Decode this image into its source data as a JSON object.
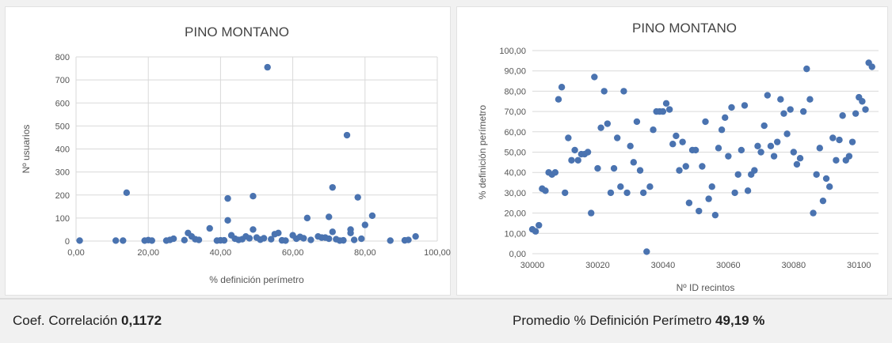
{
  "chart_data": [
    {
      "type": "scatter",
      "title": "PINO MONTANO",
      "xlabel": "% definición perímetro",
      "ylabel": "Nº usuarios",
      "xlim": [
        0,
        100
      ],
      "ylim": [
        0,
        800
      ],
      "x_ticks": [
        "0,00",
        "20,00",
        "40,00",
        "60,00",
        "80,00",
        "100,00"
      ],
      "y_ticks": [
        "0",
        "100",
        "200",
        "300",
        "400",
        "500",
        "600",
        "700",
        "800"
      ],
      "grid": true,
      "color": "#4a73b0",
      "points": [
        [
          1,
          2
        ],
        [
          11,
          2
        ],
        [
          13,
          2
        ],
        [
          14,
          210
        ],
        [
          19,
          2
        ],
        [
          20,
          4
        ],
        [
          21,
          2
        ],
        [
          25,
          2
        ],
        [
          26,
          5
        ],
        [
          27,
          10
        ],
        [
          30,
          4
        ],
        [
          31,
          35
        ],
        [
          32,
          20
        ],
        [
          33,
          8
        ],
        [
          34,
          5
        ],
        [
          37,
          55
        ],
        [
          39,
          2
        ],
        [
          40,
          3
        ],
        [
          41,
          3
        ],
        [
          42,
          185
        ],
        [
          42,
          90
        ],
        [
          43,
          25
        ],
        [
          44,
          10
        ],
        [
          45,
          5
        ],
        [
          46,
          8
        ],
        [
          47,
          20
        ],
        [
          48,
          12
        ],
        [
          49,
          195
        ],
        [
          49,
          50
        ],
        [
          50,
          15
        ],
        [
          51,
          6
        ],
        [
          52,
          12
        ],
        [
          53,
          755
        ],
        [
          54,
          8
        ],
        [
          55,
          30
        ],
        [
          56,
          35
        ],
        [
          57,
          3
        ],
        [
          58,
          2
        ],
        [
          60,
          25
        ],
        [
          61,
          10
        ],
        [
          62,
          18
        ],
        [
          63,
          12
        ],
        [
          64,
          100
        ],
        [
          65,
          5
        ],
        [
          67,
          20
        ],
        [
          68,
          15
        ],
        [
          69,
          15
        ],
        [
          70,
          105
        ],
        [
          70,
          10
        ],
        [
          71,
          233
        ],
        [
          71,
          40
        ],
        [
          72,
          8
        ],
        [
          73,
          2
        ],
        [
          74,
          3
        ],
        [
          75,
          460
        ],
        [
          76,
          50
        ],
        [
          76,
          35
        ],
        [
          77,
          5
        ],
        [
          78,
          190
        ],
        [
          79,
          10
        ],
        [
          80,
          70
        ],
        [
          82,
          110
        ],
        [
          87,
          2
        ],
        [
          91,
          3
        ],
        [
          92,
          5
        ],
        [
          94,
          20
        ]
      ]
    },
    {
      "type": "scatter",
      "title": "PINO MONTANO",
      "xlabel": "Nº  ID recintos",
      "ylabel": "% definición perímetro",
      "xlim": [
        30000,
        30106
      ],
      "ylim": [
        0,
        100
      ],
      "x_ticks": [
        "30000",
        "30020",
        "30040",
        "30060",
        "30080",
        "30100"
      ],
      "y_ticks": [
        "0,00",
        "10,00",
        "20,00",
        "30,00",
        "40,00",
        "50,00",
        "60,00",
        "70,00",
        "80,00",
        "90,00",
        "100,00"
      ],
      "grid": true,
      "color": "#4a73b0",
      "points": [
        [
          30000,
          12
        ],
        [
          30001,
          11
        ],
        [
          30002,
          14
        ],
        [
          30003,
          32
        ],
        [
          30004,
          31
        ],
        [
          30005,
          40
        ],
        [
          30006,
          39
        ],
        [
          30007,
          40
        ],
        [
          30008,
          76
        ],
        [
          30009,
          82
        ],
        [
          30010,
          30
        ],
        [
          30011,
          57
        ],
        [
          30012,
          46
        ],
        [
          30013,
          51
        ],
        [
          30014,
          46
        ],
        [
          30015,
          49
        ],
        [
          30016,
          49
        ],
        [
          30017,
          50
        ],
        [
          30018,
          20
        ],
        [
          30019,
          87
        ],
        [
          30020,
          42
        ],
        [
          30021,
          62
        ],
        [
          30022,
          80
        ],
        [
          30023,
          64
        ],
        [
          30024,
          30
        ],
        [
          30025,
          42
        ],
        [
          30026,
          57
        ],
        [
          30027,
          33
        ],
        [
          30028,
          80
        ],
        [
          30029,
          30
        ],
        [
          30030,
          53
        ],
        [
          30031,
          45
        ],
        [
          30032,
          65
        ],
        [
          30033,
          41
        ],
        [
          30034,
          30
        ],
        [
          30035,
          1
        ],
        [
          30036,
          33
        ],
        [
          30037,
          61
        ],
        [
          30038,
          70
        ],
        [
          30039,
          70
        ],
        [
          30040,
          70
        ],
        [
          30041,
          74
        ],
        [
          30042,
          71
        ],
        [
          30043,
          54
        ],
        [
          30044,
          58
        ],
        [
          30045,
          41
        ],
        [
          30046,
          55
        ],
        [
          30047,
          43
        ],
        [
          30048,
          25
        ],
        [
          30049,
          51
        ],
        [
          30050,
          51
        ],
        [
          30051,
          21
        ],
        [
          30052,
          43
        ],
        [
          30053,
          65
        ],
        [
          30054,
          27
        ],
        [
          30055,
          33
        ],
        [
          30056,
          19
        ],
        [
          30057,
          52
        ],
        [
          30058,
          61
        ],
        [
          30059,
          67
        ],
        [
          30060,
          48
        ],
        [
          30061,
          72
        ],
        [
          30062,
          30
        ],
        [
          30063,
          39
        ],
        [
          30064,
          51
        ],
        [
          30065,
          73
        ],
        [
          30066,
          31
        ],
        [
          30067,
          39
        ],
        [
          30068,
          41
        ],
        [
          30069,
          53
        ],
        [
          30070,
          50
        ],
        [
          30071,
          63
        ],
        [
          30072,
          78
        ],
        [
          30073,
          53
        ],
        [
          30074,
          48
        ],
        [
          30075,
          55
        ],
        [
          30076,
          76
        ],
        [
          30077,
          69
        ],
        [
          30078,
          59
        ],
        [
          30079,
          71
        ],
        [
          30080,
          50
        ],
        [
          30081,
          44
        ],
        [
          30082,
          47
        ],
        [
          30083,
          70
        ],
        [
          30084,
          91
        ],
        [
          30085,
          76
        ],
        [
          30086,
          20
        ],
        [
          30087,
          39
        ],
        [
          30088,
          52
        ],
        [
          30089,
          26
        ],
        [
          30090,
          37
        ],
        [
          30091,
          33
        ],
        [
          30092,
          57
        ],
        [
          30093,
          46
        ],
        [
          30094,
          56
        ],
        [
          30095,
          68
        ],
        [
          30096,
          46
        ],
        [
          30097,
          48
        ],
        [
          30098,
          55
        ],
        [
          30099,
          69
        ],
        [
          30100,
          77
        ],
        [
          30101,
          75
        ],
        [
          30102,
          71
        ],
        [
          30103,
          94
        ],
        [
          30104,
          92
        ]
      ]
    }
  ],
  "footer": {
    "correlation_label": "Coef. Correlación ",
    "correlation_value": "0,1172",
    "average_label": "Promedio % Definición Perímetro ",
    "average_value": "49,19 %"
  }
}
